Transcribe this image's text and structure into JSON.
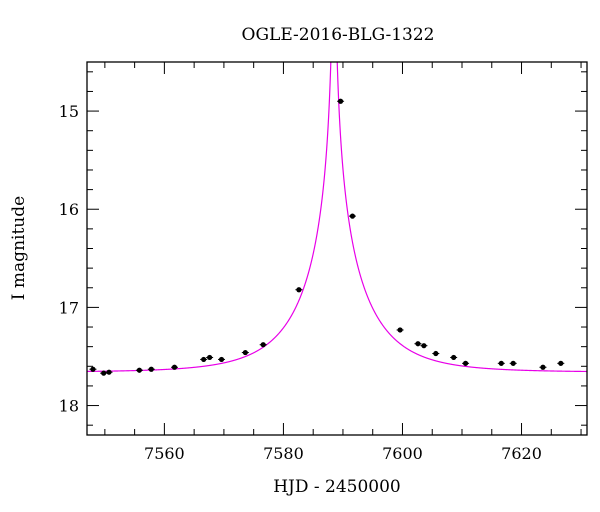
{
  "chart_data": {
    "type": "scatter",
    "title": "OGLE-2016-BLG-1322",
    "xlabel": "HJD - 2450000",
    "ylabel": "I magnitude",
    "xlim": [
      7547,
      7631
    ],
    "ylim": [
      18.3,
      14.5
    ],
    "y_inverted": true,
    "grid": false,
    "x_ticks": [
      7560,
      7580,
      7600,
      7620
    ],
    "y_ticks": [
      15,
      16,
      17,
      18
    ],
    "series": [
      {
        "type": "scatter",
        "color": "#000000",
        "x": [
          7548,
          7549.8,
          7550.7,
          7555.8,
          7557.8,
          7561.7,
          7566.6,
          7567.6,
          7569.6,
          7573.6,
          7576.6,
          7582.6,
          7589.6,
          7591.6,
          7599.6,
          7602.6,
          7603.6,
          7605.6,
          7608.6,
          7610.6,
          7616.6,
          7618.6,
          7623.6,
          7626.6
        ],
        "y": [
          17.63,
          17.67,
          17.66,
          17.64,
          17.63,
          17.61,
          17.53,
          17.51,
          17.53,
          17.46,
          17.38,
          16.82,
          14.9,
          16.07,
          17.23,
          17.37,
          17.39,
          17.47,
          17.51,
          17.57,
          17.57,
          17.57,
          17.61,
          17.57
        ]
      },
      {
        "type": "line",
        "color": "#e800e8",
        "model": {
          "t0": 7588.5,
          "tE": 11.2,
          "u0": 0.004,
          "baseline": 17.66,
          "fs": 0.88
        }
      }
    ]
  }
}
